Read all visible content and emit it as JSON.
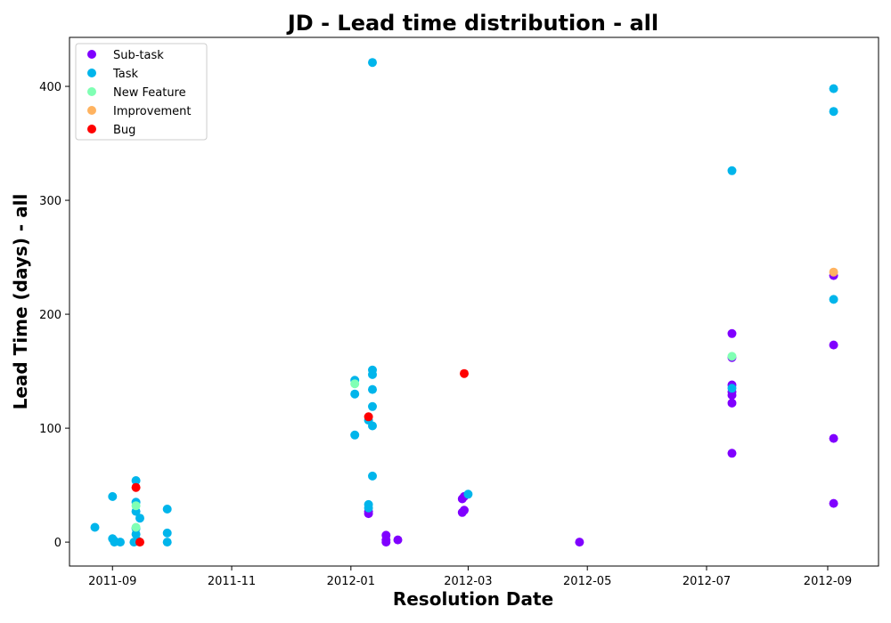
{
  "chart_data": {
    "type": "scatter",
    "title": "JD - Lead time distribution - all",
    "xlabel": "Resolution Date",
    "ylabel": "Lead Time (days) - all",
    "x_type": "date",
    "xlim": [
      "2011-08-10",
      "2012-09-27"
    ],
    "ylim": [
      -21,
      443
    ],
    "x_ticks": [
      "2011-09",
      "2011-11",
      "2012-01",
      "2012-03",
      "2012-05",
      "2012-07",
      "2012-09"
    ],
    "y_ticks": [
      0,
      100,
      200,
      300,
      400
    ],
    "grid": false,
    "legend_position": "top-left",
    "series": [
      {
        "name": "Sub-task",
        "color": "#8000ff",
        "points": [
          [
            "2012-01-10",
            25
          ],
          [
            "2012-01-10",
            27
          ],
          [
            "2012-01-19",
            0
          ],
          [
            "2012-01-19",
            2
          ],
          [
            "2012-01-19",
            6
          ],
          [
            "2012-01-25",
            2
          ],
          [
            "2012-02-27",
            26
          ],
          [
            "2012-02-27",
            38
          ],
          [
            "2012-02-28",
            28
          ],
          [
            "2012-02-28",
            40
          ],
          [
            "2012-04-27",
            0
          ],
          [
            "2012-07-14",
            78
          ],
          [
            "2012-07-14",
            122
          ],
          [
            "2012-07-14",
            129
          ],
          [
            "2012-07-14",
            132
          ],
          [
            "2012-07-14",
            138
          ],
          [
            "2012-07-14",
            162
          ],
          [
            "2012-07-14",
            183
          ],
          [
            "2012-09-04",
            34
          ],
          [
            "2012-09-04",
            91
          ],
          [
            "2012-09-04",
            173
          ],
          [
            "2012-09-04",
            234
          ]
        ]
      },
      {
        "name": "Task",
        "color": "#00b5eb",
        "points": [
          [
            "2011-08-23",
            13
          ],
          [
            "2011-09-01",
            3
          ],
          [
            "2011-09-01",
            40
          ],
          [
            "2011-09-02",
            1
          ],
          [
            "2011-09-02",
            0
          ],
          [
            "2011-09-05",
            0
          ],
          [
            "2011-09-12",
            0
          ],
          [
            "2011-09-13",
            7
          ],
          [
            "2011-09-13",
            12
          ],
          [
            "2011-09-13",
            27
          ],
          [
            "2011-09-13",
            35
          ],
          [
            "2011-09-13",
            54
          ],
          [
            "2011-09-14",
            1
          ],
          [
            "2011-09-15",
            21
          ],
          [
            "2011-09-29",
            0
          ],
          [
            "2011-09-29",
            8
          ],
          [
            "2011-09-29",
            29
          ],
          [
            "2012-01-03",
            94
          ],
          [
            "2012-01-03",
            130
          ],
          [
            "2012-01-03",
            142
          ],
          [
            "2012-01-10",
            30
          ],
          [
            "2012-01-10",
            33
          ],
          [
            "2012-01-10",
            107
          ],
          [
            "2012-01-12",
            58
          ],
          [
            "2012-01-12",
            102
          ],
          [
            "2012-01-12",
            119
          ],
          [
            "2012-01-12",
            134
          ],
          [
            "2012-01-12",
            147
          ],
          [
            "2012-01-12",
            151
          ],
          [
            "2012-01-12",
            421
          ],
          [
            "2012-03-01",
            42
          ],
          [
            "2012-07-14",
            135
          ],
          [
            "2012-07-14",
            326
          ],
          [
            "2012-09-04",
            213
          ],
          [
            "2012-09-04",
            378
          ],
          [
            "2012-09-04",
            398
          ]
        ]
      },
      {
        "name": "New Feature",
        "color": "#80ffb4",
        "points": [
          [
            "2011-09-13",
            13
          ],
          [
            "2011-09-13",
            32
          ],
          [
            "2012-01-03",
            139
          ],
          [
            "2012-07-14",
            163
          ]
        ]
      },
      {
        "name": "Improvement",
        "color": "#ffb360",
        "points": [
          [
            "2012-09-04",
            237
          ]
        ]
      },
      {
        "name": "Bug",
        "color": "#ff0000",
        "points": [
          [
            "2011-09-13",
            48
          ],
          [
            "2011-09-15",
            0
          ],
          [
            "2012-01-10",
            110
          ],
          [
            "2012-02-28",
            148
          ]
        ]
      }
    ]
  }
}
